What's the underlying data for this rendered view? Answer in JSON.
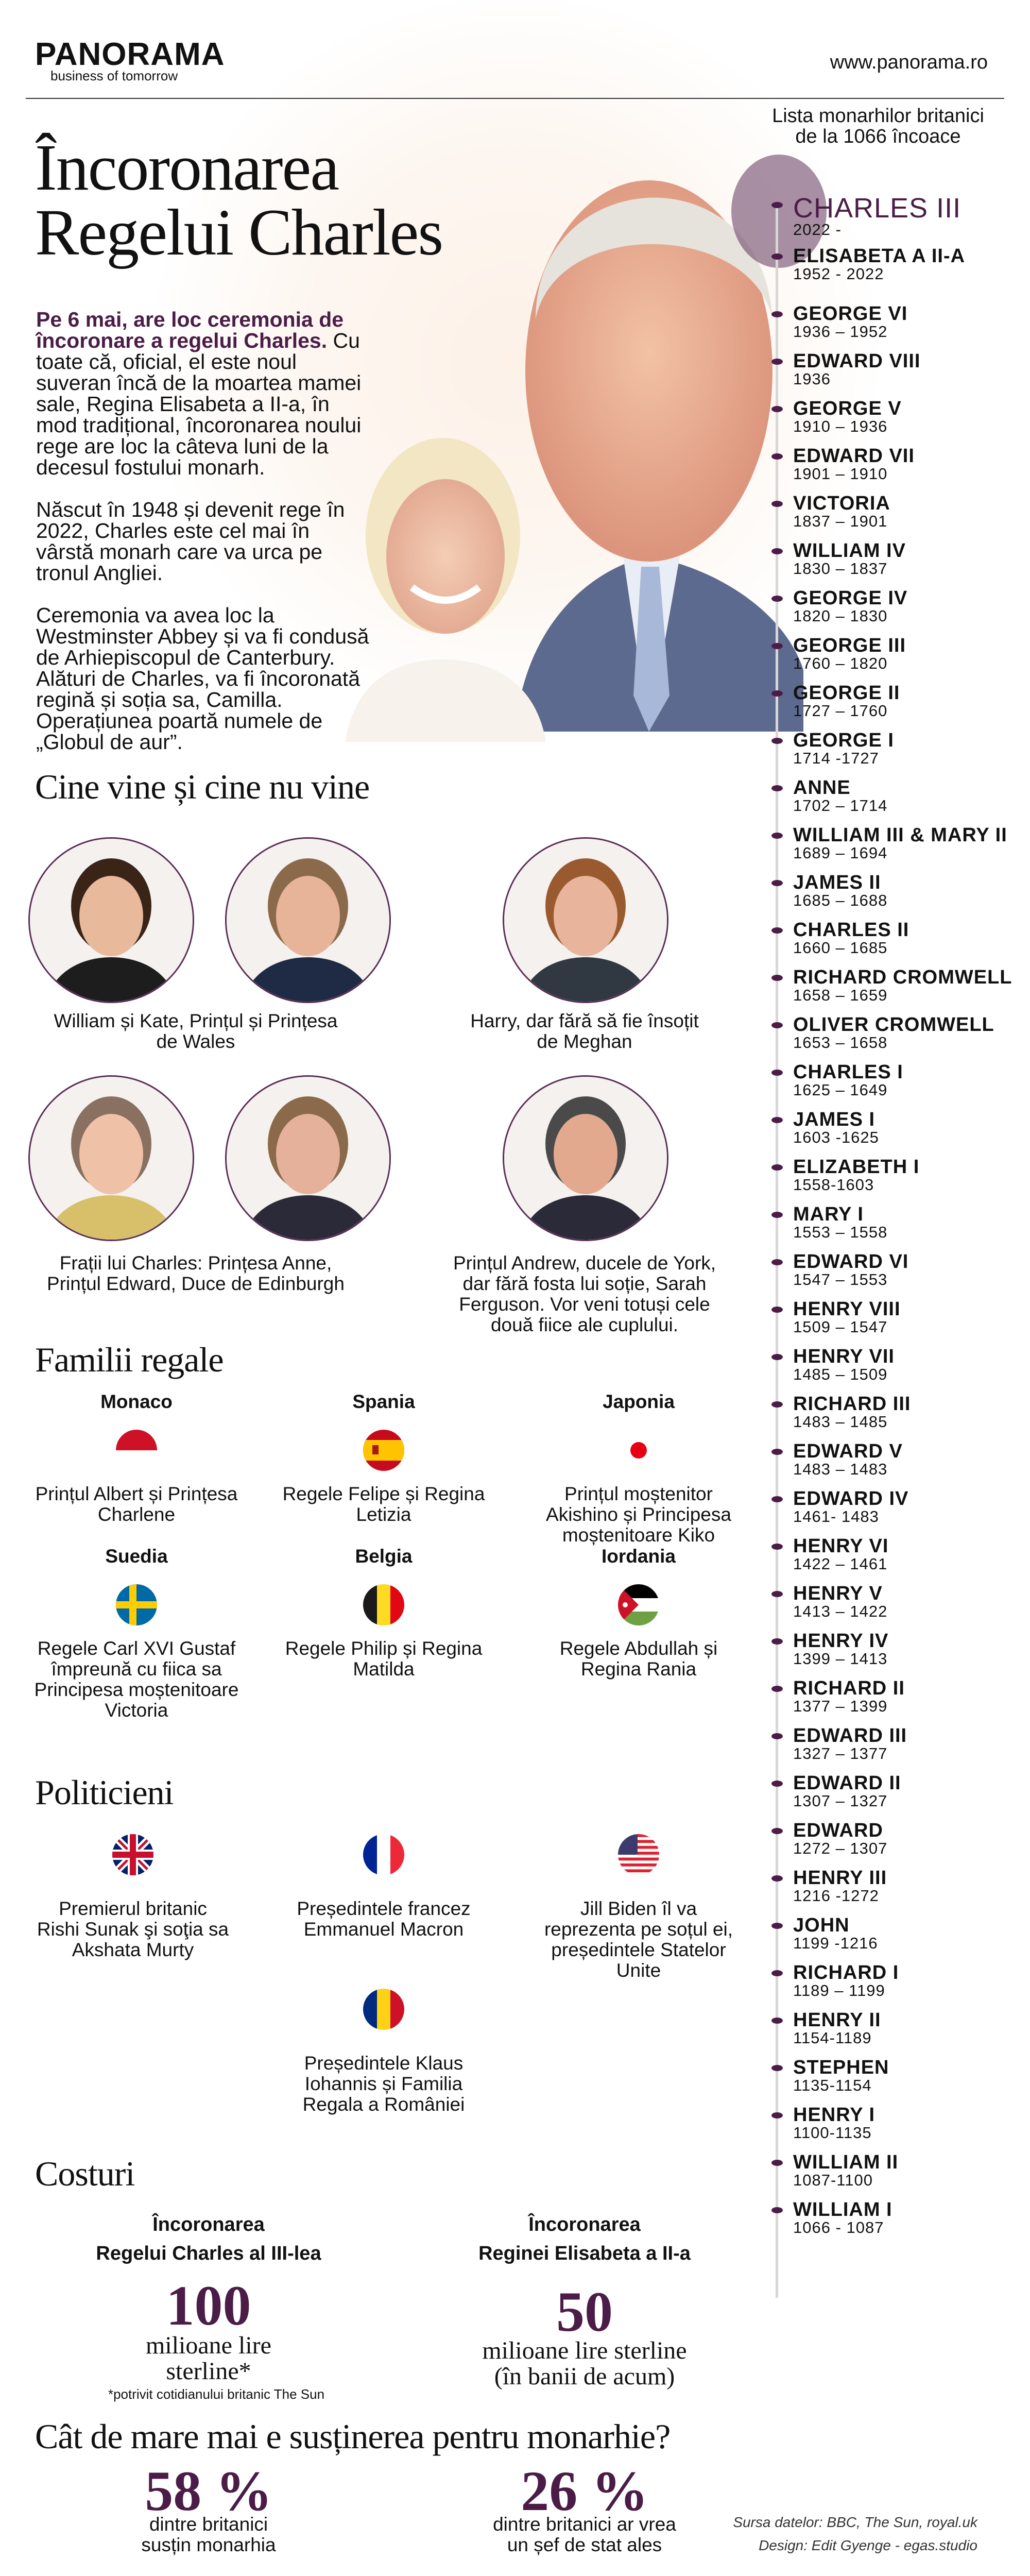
{
  "header": {
    "logo": "PANORAMA",
    "tagline": "business of tomorrow",
    "site": "www.panorama.ro"
  },
  "title": {
    "line1": "Încoronarea",
    "line2": "Regelui Charles"
  },
  "intro": {
    "highlight": "Pe 6 mai, are loc ceremonia de încoronare a regelui Charles.",
    "p1_rest": " Cu toate că, oficial, el este noul suveran încă de la moartea mamei sale, Regina Elisabeta a II-a, în mod tradițional, încoronarea noului rege are loc la câteva luni de la decesul fostului monarh.",
    "p2": "Născut în 1948 și devenit rege în 2022, Charles este cel mai în vârstă monarh care va urca pe tronul Angliei.",
    "p3": "Ceremonia va avea loc la Westminster Abbey și va fi condusă de Arhiepiscopul de Canterbury. Alături de Charles, va fi încoronată regină și soția sa, Camilla. Operațiunea poartă numele de „Globul de aur”."
  },
  "timeline": {
    "heading_line1": "Lista monarhilor britanici",
    "heading_line2": "de la 1066 încoace",
    "monarchs": [
      {
        "name": "CHARLES III",
        "dates": "2022 -"
      },
      {
        "name": "ELISABETA A II-A",
        "dates": "1952 - 2022"
      },
      {
        "name": "GEORGE VI",
        "dates": "1936 – 1952"
      },
      {
        "name": "EDWARD VIII",
        "dates": "1936"
      },
      {
        "name": "GEORGE V",
        "dates": "1910 – 1936"
      },
      {
        "name": "EDWARD VII",
        "dates": "1901 – 1910"
      },
      {
        "name": "VICTORIA",
        "dates": "1837 – 1901"
      },
      {
        "name": "WILLIAM IV",
        "dates": "1830 – 1837"
      },
      {
        "name": "GEORGE IV",
        "dates": "1820 – 1830"
      },
      {
        "name": "GEORGE III",
        "dates": "1760 – 1820"
      },
      {
        "name": "GEORGE II",
        "dates": "1727 – 1760"
      },
      {
        "name": "GEORGE I",
        "dates": "1714 -1727"
      },
      {
        "name": "ANNE",
        "dates": "1702 – 1714"
      },
      {
        "name": "WILLIAM III  & MARY II",
        "dates": "1689 – 1694"
      },
      {
        "name": "JAMES II",
        "dates": "1685 – 1688"
      },
      {
        "name": "CHARLES II",
        "dates": "1660 – 1685"
      },
      {
        "name": "RICHARD CROMWELL",
        "dates": "1658 – 1659"
      },
      {
        "name": "OLIVER CROMWELL",
        "dates": "1653 – 1658"
      },
      {
        "name": "CHARLES I",
        "dates": "1625 – 1649"
      },
      {
        "name": "JAMES I",
        "dates": "1603 -1625"
      },
      {
        "name": "ELIZABETH I",
        "dates": "1558-1603"
      },
      {
        "name": "MARY I",
        "dates": "1553 – 1558"
      },
      {
        "name": "EDWARD VI",
        "dates": "1547 – 1553"
      },
      {
        "name": "HENRY VIII",
        "dates": "1509 – 1547"
      },
      {
        "name": "HENRY VII",
        "dates": "1485 – 1509"
      },
      {
        "name": "RICHARD III",
        "dates": "1483 – 1485"
      },
      {
        "name": "EDWARD V",
        "dates": "1483 – 1483"
      },
      {
        "name": "EDWARD IV",
        "dates": "1461- 1483"
      },
      {
        "name": "HENRY VI",
        "dates": "1422 – 1461"
      },
      {
        "name": "HENRY V",
        "dates": "1413 – 1422"
      },
      {
        "name": "HENRY IV",
        "dates": "1399 – 1413"
      },
      {
        "name": "RICHARD II",
        "dates": "1377 – 1399"
      },
      {
        "name": "EDWARD III",
        "dates": "1327 – 1377"
      },
      {
        "name": "EDWARD II",
        "dates": "1307 – 1327"
      },
      {
        "name": "EDWARD",
        "dates": "1272 – 1307"
      },
      {
        "name": "HENRY III",
        "dates": "1216 -1272"
      },
      {
        "name": "JOHN",
        "dates": "1199 -1216"
      },
      {
        "name": "RICHARD I",
        "dates": "1189 – 1199"
      },
      {
        "name": "HENRY II",
        "dates": "1154-1189"
      },
      {
        "name": "STEPHEN",
        "dates": "1135-1154"
      },
      {
        "name": "HENRY I",
        "dates": "1100-1135"
      },
      {
        "name": "WILLIAM II",
        "dates": "1087-1100"
      },
      {
        "name": "WILLIAM I",
        "dates": "1066 - 1087"
      }
    ]
  },
  "guests": {
    "heading": "Cine vine și cine nu vine",
    "captions": [
      "William și Kate, Prințul și Prințesa de Wales",
      "Harry, dar fără să fie însoțit de Meghan",
      "Frații lui Charles: Prințesa Anne, Prințul Edward, Duce de Edinburgh",
      "Prințul Andrew, ducele de York, dar fără fosta lui soție, Sarah Ferguson. Vor veni totuși cele două fiice ale cuplului."
    ]
  },
  "royals": {
    "heading": "Familii regale",
    "items": [
      {
        "country": "Monaco",
        "flag": "monaco",
        "caption": "Prințul Albert și Prințesa Charlene"
      },
      {
        "country": "Spania",
        "flag": "spain",
        "caption": "Regele Felipe și Regina Letizia"
      },
      {
        "country": "Japonia",
        "flag": "japan",
        "caption": "Prințul moștenitor Akishino și Principesa moștenitoare Kiko"
      },
      {
        "country": "Suedia",
        "flag": "sweden",
        "caption": "Regele Carl XVI Gustaf împreună cu fiica sa Principesa moștenitoare Victoria"
      },
      {
        "country": "Belgia",
        "flag": "belgium",
        "caption": "Regele Philip și Regina Matilda"
      },
      {
        "country": "Iordania",
        "flag": "jordan",
        "caption": "Regele Abdullah și Regina Rania"
      }
    ]
  },
  "politicians": {
    "heading": "Politicieni",
    "items": [
      {
        "flag": "uk",
        "caption": "Premierul britanic Rishi Sunak şi soţia sa Akshata Murty"
      },
      {
        "flag": "france",
        "caption": "Președintele francez Emmanuel Macron"
      },
      {
        "flag": "usa",
        "caption": "Jill Biden îl va reprezenta pe soțul ei, președintele Statelor Unite"
      },
      {
        "flag": "romania",
        "caption": "Președintele Klaus Iohannis și Familia Regala a României"
      }
    ]
  },
  "costs": {
    "heading": "Costuri",
    "charles": {
      "sub1": "Încoronarea",
      "sub2": "Regelui Charles al III-lea",
      "value": "100",
      "unit1": "milioane lire",
      "unit2": "sterline*",
      "note": "*potrivit cotidianului britanic The Sun"
    },
    "elizabeth": {
      "sub1": "Încoronarea",
      "sub2": "Reginei Elisabeta a II-a",
      "value": "50",
      "unit1": "milioane lire sterline",
      "unit2": "(în banii de acum)"
    }
  },
  "support": {
    "heading": "Cât de mare mai e susținerea pentru monarhie?",
    "items": [
      {
        "value": "58 %",
        "line1": "dintre britanici",
        "line2": "susțin monarhia"
      },
      {
        "value": "26 %",
        "line1": "dintre britanici ar vrea",
        "line2": "un șef de stat ales"
      }
    ]
  },
  "footer": {
    "source": "Sursa datelor: BBC, The Sun, royal.uk",
    "design": "Design: Edit Gyenge -  egas.studio"
  },
  "colors": {
    "accent": "#4b1c47",
    "timeline_line": "#d9d6d8"
  }
}
